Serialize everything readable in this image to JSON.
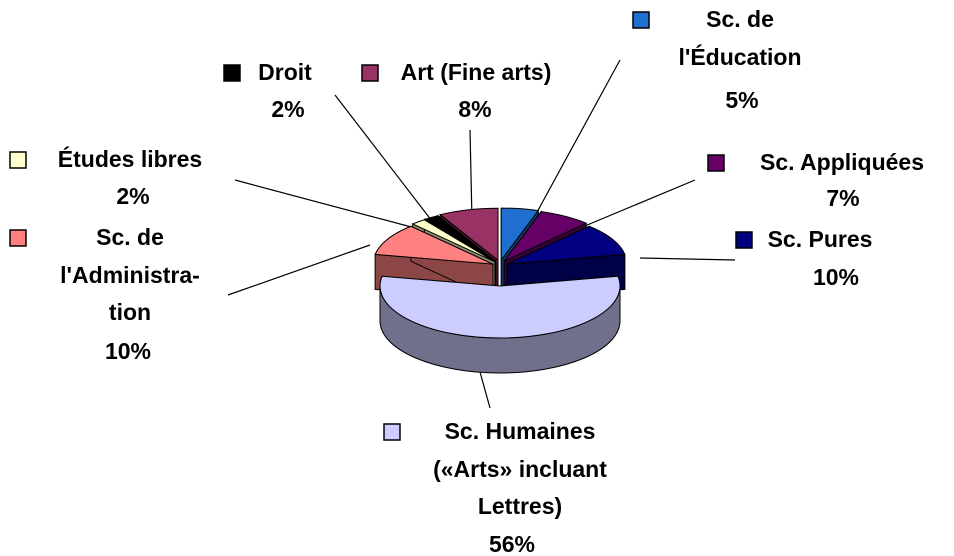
{
  "chart_data": {
    "type": "pie3d",
    "categories": [
      "Sc. de\nl'Éducation",
      "Sc. Appliquées",
      "Sc. Pures",
      "Sc. Humaines\n(«Arts» incluant\nLettres)",
      "Sc. de\nl'Administra-\ntion",
      "Études libres",
      "Droit",
      "Art (Fine arts)"
    ],
    "values": [
      5,
      7,
      10,
      56,
      10,
      2,
      2,
      8
    ],
    "value_labels": [
      "5%",
      "7%",
      "10%",
      "56%",
      "10%",
      "2%",
      "2%",
      "8%"
    ],
    "colors": [
      "#1f6fd0",
      "#660066",
      "#000080",
      "#ccccff",
      "#ff8080",
      "#ffffcc",
      "#000000",
      "#993366"
    ]
  }
}
